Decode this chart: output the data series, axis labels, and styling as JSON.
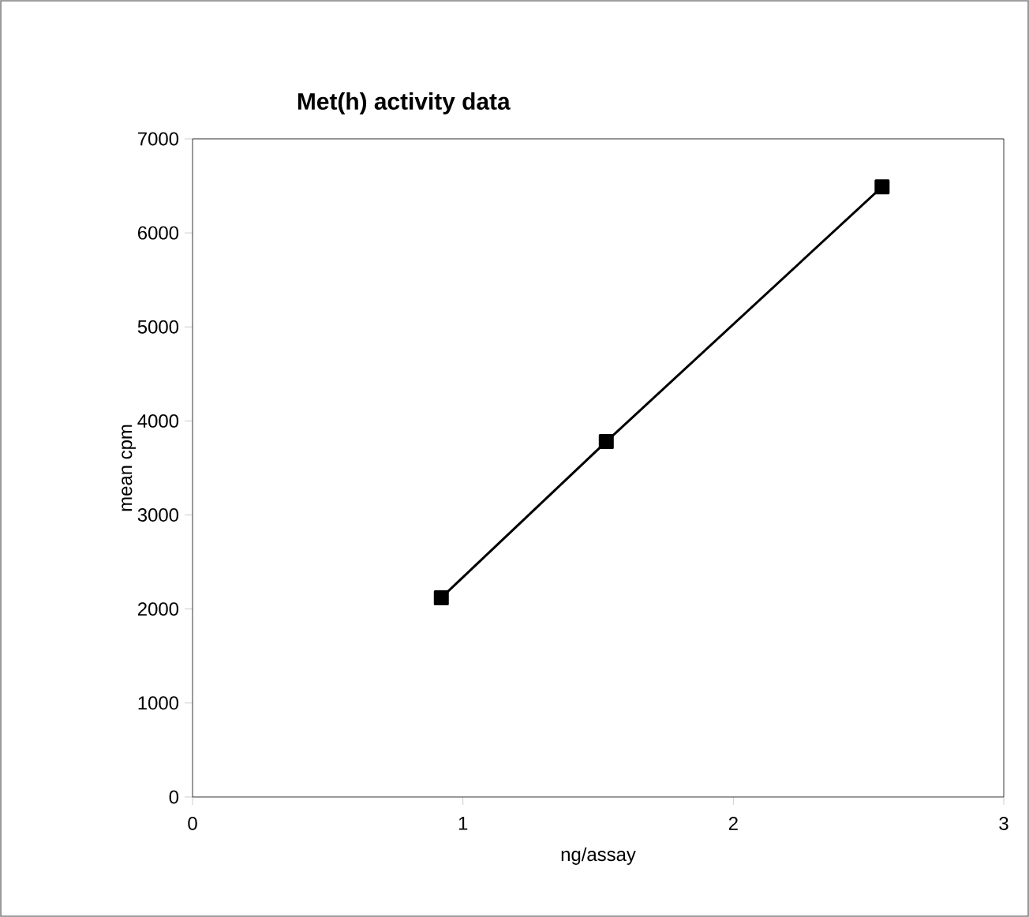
{
  "chart_data": {
    "type": "line",
    "title": "Met(h) activity data",
    "xlabel": "ng/assay",
    "ylabel": "mean cpm",
    "x": [
      0.92,
      1.53,
      2.55
    ],
    "series": [
      {
        "color": "#000000",
        "values": [
          2120,
          3780,
          6490
        ]
      }
    ],
    "xlim": [
      0,
      3
    ],
    "xticks": [
      0,
      1,
      2,
      3
    ],
    "ylim": [
      0,
      7000
    ],
    "yticks": [
      0,
      1000,
      2000,
      3000,
      4000,
      5000,
      6000,
      7000
    ],
    "grid": false,
    "marker": "square",
    "line_style": "solid"
  }
}
